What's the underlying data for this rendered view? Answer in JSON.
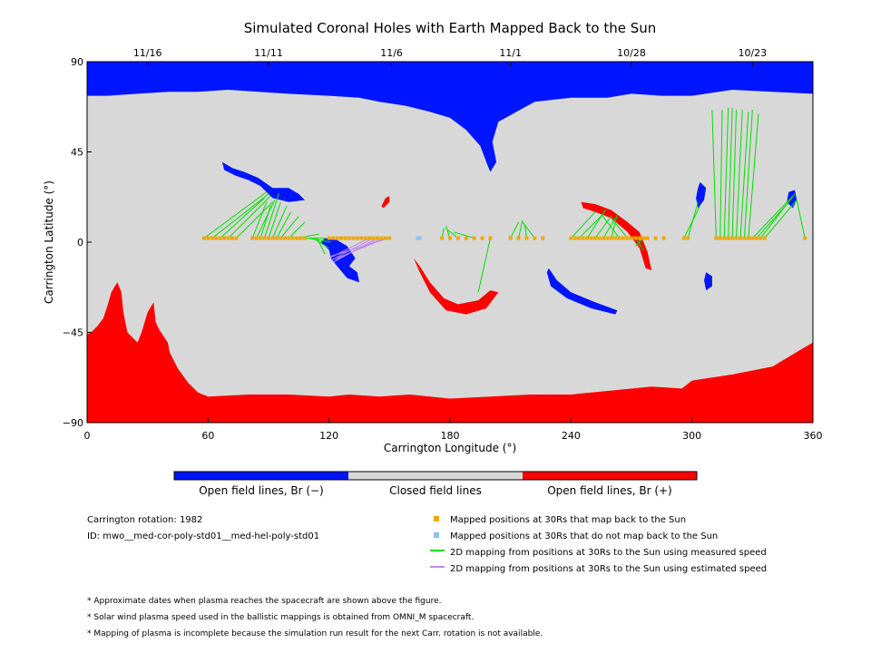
{
  "chart_data": {
    "type": "map",
    "title": "Simulated Coronal Holes with Earth Mapped Back to the Sun",
    "xlabel": "Carrington Longitude (°)",
    "ylabel": "Carrington Latitude (°)",
    "xlim": [
      0,
      360
    ],
    "ylim": [
      -90,
      90
    ],
    "x_ticks": [
      0,
      60,
      120,
      180,
      240,
      300,
      360
    ],
    "y_ticks": [
      90,
      45,
      0,
      -45,
      -90
    ],
    "y_tick_labels": [
      "90",
      "45",
      "0",
      "−45",
      "−90"
    ],
    "top_axis_dates": [
      {
        "label": "11/16",
        "lon": 30
      },
      {
        "label": "11/11",
        "lon": 90
      },
      {
        "label": "11/6",
        "lon": 151
      },
      {
        "label": "11/1",
        "lon": 210
      },
      {
        "label": "10/28",
        "lon": 270
      },
      {
        "label": "10/23",
        "lon": 330
      }
    ],
    "colors": {
      "open_negative": "#0015ff",
      "open_positive": "#ff0000",
      "closed": "#d8d8d8",
      "mapped": "#f0a800",
      "not_mapped": "#88c4ee",
      "measured": "#00e000",
      "estimated": "#c088f0"
    },
    "colorbar_labels": [
      "Open field lines, Br (−)",
      "Closed field lines",
      "Open field lines, Br (+)"
    ],
    "regions": [
      {
        "name": "north-negative-polar-cap",
        "polarity": "negative",
        "outline": [
          [
            0,
            90
          ],
          [
            360,
            90
          ],
          [
            360,
            74
          ],
          [
            340,
            75
          ],
          [
            320,
            76
          ],
          [
            300,
            73
          ],
          [
            285,
            73
          ],
          [
            270,
            74
          ],
          [
            258,
            72
          ],
          [
            240,
            72
          ],
          [
            222,
            70
          ],
          [
            204,
            60
          ],
          [
            201,
            50
          ],
          [
            203,
            40
          ],
          [
            200,
            35
          ],
          [
            198,
            40
          ],
          [
            195,
            48
          ],
          [
            188,
            56
          ],
          [
            180,
            62
          ],
          [
            170,
            65
          ],
          [
            158,
            68
          ],
          [
            145,
            70
          ],
          [
            135,
            72
          ],
          [
            120,
            73
          ],
          [
            100,
            74
          ],
          [
            85,
            75
          ],
          [
            70,
            76
          ],
          [
            55,
            75
          ],
          [
            40,
            75
          ],
          [
            25,
            74
          ],
          [
            10,
            73
          ],
          [
            0,
            73
          ]
        ]
      },
      {
        "name": "south-positive-polar-cap",
        "polarity": "positive",
        "outline": [
          [
            0,
            -90
          ],
          [
            360,
            -90
          ],
          [
            360,
            -50
          ],
          [
            350,
            -56
          ],
          [
            340,
            -62
          ],
          [
            320,
            -66
          ],
          [
            300,
            -69
          ],
          [
            295,
            -73
          ],
          [
            280,
            -72
          ],
          [
            260,
            -74
          ],
          [
            240,
            -76
          ],
          [
            220,
            -76
          ],
          [
            200,
            -77
          ],
          [
            180,
            -78
          ],
          [
            160,
            -76
          ],
          [
            145,
            -77
          ],
          [
            130,
            -76
          ],
          [
            120,
            -77
          ],
          [
            100,
            -76
          ],
          [
            80,
            -76
          ],
          [
            60,
            -77
          ],
          [
            55,
            -75
          ],
          [
            50,
            -70
          ],
          [
            45,
            -63
          ],
          [
            41,
            -55
          ],
          [
            40,
            -50
          ],
          [
            38,
            -47
          ],
          [
            36,
            -44
          ],
          [
            34,
            -40
          ],
          [
            33,
            -30
          ],
          [
            30,
            -35
          ],
          [
            27,
            -45
          ],
          [
            25,
            -50
          ],
          [
            20,
            -45
          ],
          [
            18,
            -35
          ],
          [
            17,
            -25
          ],
          [
            15,
            -20
          ],
          [
            12,
            -25
          ],
          [
            10,
            -32
          ],
          [
            8,
            -38
          ],
          [
            5,
            -42
          ],
          [
            2,
            -45
          ],
          [
            0,
            -46
          ]
        ]
      },
      {
        "name": "hole-neg-70-90",
        "polarity": "negative",
        "outline": [
          [
            67,
            40
          ],
          [
            72,
            37
          ],
          [
            78,
            35
          ],
          [
            85,
            32
          ],
          [
            92,
            27
          ],
          [
            100,
            27
          ],
          [
            105,
            24
          ],
          [
            108,
            21
          ],
          [
            100,
            20
          ],
          [
            92,
            22
          ],
          [
            86,
            28
          ],
          [
            80,
            31
          ],
          [
            74,
            33
          ],
          [
            68,
            36
          ]
        ]
      },
      {
        "name": "hole-neg-122-107",
        "polarity": "negative",
        "outline": [
          [
            116,
            0
          ],
          [
            120,
            -4
          ],
          [
            121,
            -8
          ],
          [
            124,
            -12
          ],
          [
            129,
            -18
          ],
          [
            135,
            -20
          ],
          [
            134,
            -15
          ],
          [
            130,
            -12
          ],
          [
            133,
            -8
          ],
          [
            129,
            -2
          ],
          [
            124,
            1
          ],
          [
            118,
            2
          ]
        ]
      },
      {
        "name": "hole-pos-146-20",
        "polarity": "positive",
        "outline": [
          [
            146,
            18
          ],
          [
            148,
            22
          ],
          [
            150,
            23
          ],
          [
            150,
            20
          ],
          [
            147,
            17
          ]
        ]
      },
      {
        "name": "hole-pos-168-24",
        "polarity": "positive",
        "outline": [
          [
            162,
            -8
          ],
          [
            165,
            -15
          ],
          [
            170,
            -25
          ],
          [
            178,
            -34
          ],
          [
            188,
            -36
          ],
          [
            198,
            -33
          ],
          [
            204,
            -25
          ],
          [
            200,
            -24
          ],
          [
            194,
            -29
          ],
          [
            184,
            -31
          ],
          [
            177,
            -28
          ],
          [
            170,
            -20
          ],
          [
            165,
            -12
          ]
        ]
      },
      {
        "name": "hole-neg-234-28",
        "polarity": "negative",
        "outline": [
          [
            228,
            -15
          ],
          [
            230,
            -22
          ],
          [
            238,
            -28
          ],
          [
            250,
            -33
          ],
          [
            262,
            -36
          ],
          [
            263,
            -34
          ],
          [
            252,
            -30
          ],
          [
            240,
            -25
          ],
          [
            233,
            -19
          ],
          [
            229,
            -13
          ]
        ]
      },
      {
        "name": "hole-pos-250-18",
        "polarity": "positive",
        "outline": [
          [
            245,
            20
          ],
          [
            252,
            19
          ],
          [
            260,
            16
          ],
          [
            268,
            10
          ],
          [
            274,
            5
          ],
          [
            278,
            -5
          ],
          [
            280,
            -14
          ],
          [
            277,
            -13
          ],
          [
            274,
            -3
          ],
          [
            268,
            5
          ],
          [
            260,
            12
          ],
          [
            252,
            15
          ],
          [
            246,
            17
          ]
        ]
      },
      {
        "name": "hole-neg-305-22",
        "polarity": "negative",
        "outline": [
          [
            304,
            30
          ],
          [
            307,
            27
          ],
          [
            306,
            21
          ],
          [
            303,
            17
          ],
          [
            302,
            22
          ],
          [
            303,
            27
          ]
        ]
      },
      {
        "name": "hole-neg-310-20",
        "polarity": "negative",
        "outline": [
          [
            307,
            -15
          ],
          [
            310,
            -17
          ],
          [
            310,
            -22
          ],
          [
            307,
            -24
          ],
          [
            306,
            -19
          ]
        ]
      },
      {
        "name": "hole-neg-350-20",
        "polarity": "negative",
        "outline": [
          [
            348,
            25
          ],
          [
            351,
            26
          ],
          [
            352,
            21
          ],
          [
            350,
            17
          ],
          [
            347,
            20
          ]
        ]
      }
    ],
    "mapped_positions_lon": [
      58,
      60,
      62,
      64,
      66,
      68,
      70,
      72,
      74,
      82,
      84,
      86,
      88,
      90,
      92,
      94,
      96,
      98,
      100,
      102,
      104,
      106,
      108,
      120,
      122,
      124,
      126,
      128,
      130,
      132,
      134,
      136,
      138,
      140,
      142,
      144,
      146,
      148,
      150,
      176,
      180,
      184,
      188,
      192,
      196,
      200,
      210,
      214,
      218,
      222,
      226,
      240,
      242,
      244,
      246,
      248,
      250,
      252,
      254,
      256,
      258,
      260,
      262,
      264,
      266,
      268,
      270,
      272,
      274,
      276,
      278,
      282,
      286,
      296,
      298,
      312,
      314,
      316,
      318,
      320,
      322,
      324,
      326,
      328,
      330,
      332,
      334,
      336,
      356
    ],
    "not_mapped_positions_lon": [
      164,
      165
    ],
    "measured_mappings": [
      [
        58,
        2,
        89,
        25
      ],
      [
        62,
        2,
        90,
        24
      ],
      [
        66,
        2,
        88,
        22
      ],
      [
        70,
        2,
        91,
        23
      ],
      [
        74,
        2,
        92,
        20
      ],
      [
        82,
        2,
        89,
        20
      ],
      [
        84,
        2,
        93,
        21
      ],
      [
        86,
        2,
        91,
        18
      ],
      [
        88,
        2,
        95,
        24
      ],
      [
        90,
        2,
        96,
        20
      ],
      [
        92,
        2,
        99,
        18
      ],
      [
        94,
        2,
        101,
        15
      ],
      [
        96,
        2,
        105,
        13
      ],
      [
        100,
        2,
        108,
        10
      ],
      [
        104,
        2,
        115,
        4
      ],
      [
        108,
        2,
        118,
        2
      ],
      [
        110,
        2,
        121,
        0
      ],
      [
        112,
        2,
        120,
        -3
      ],
      [
        114,
        2,
        118,
        -6
      ],
      [
        176,
        2,
        177,
        7
      ],
      [
        180,
        2,
        178,
        8
      ],
      [
        184,
        2,
        179,
        6
      ],
      [
        192,
        2,
        182,
        5
      ],
      [
        200,
        2,
        194,
        -25
      ],
      [
        210,
        2,
        214,
        10
      ],
      [
        214,
        2,
        216,
        11
      ],
      [
        218,
        2,
        217,
        9
      ],
      [
        222,
        2,
        216,
        10
      ],
      [
        240,
        2,
        252,
        15
      ],
      [
        244,
        2,
        256,
        14
      ],
      [
        248,
        2,
        257,
        16
      ],
      [
        252,
        2,
        260,
        13
      ],
      [
        256,
        2,
        262,
        12
      ],
      [
        260,
        2,
        263,
        14
      ],
      [
        264,
        2,
        255,
        14
      ],
      [
        268,
        2,
        260,
        12
      ],
      [
        272,
        2,
        276,
        -4
      ],
      [
        274,
        2,
        274,
        -2
      ],
      [
        276,
        2,
        272,
        -2
      ],
      [
        278,
        2,
        276,
        2
      ],
      [
        296,
        2,
        304,
        18
      ],
      [
        298,
        2,
        303,
        20
      ],
      [
        312,
        2,
        310,
        66
      ],
      [
        314,
        2,
        315,
        66
      ],
      [
        316,
        2,
        318,
        67
      ],
      [
        318,
        2,
        320,
        67
      ],
      [
        320,
        2,
        322,
        66
      ],
      [
        322,
        2,
        325,
        66
      ],
      [
        324,
        2,
        328,
        65
      ],
      [
        326,
        2,
        330,
        66
      ],
      [
        328,
        2,
        333,
        64
      ],
      [
        330,
        2,
        350,
        23
      ],
      [
        332,
        2,
        348,
        20
      ],
      [
        334,
        2,
        351,
        24
      ],
      [
        336,
        2,
        352,
        21
      ],
      [
        356,
        2,
        352,
        21
      ]
    ],
    "estimated_mappings": [
      [
        140,
        2,
        120,
        -8
      ],
      [
        142,
        2,
        121,
        -9
      ],
      [
        144,
        2,
        122,
        -10
      ],
      [
        146,
        2,
        123,
        -9
      ],
      [
        148,
        2,
        124,
        -8
      ],
      [
        150,
        2,
        121,
        -7
      ]
    ]
  },
  "legend": {
    "items": [
      {
        "label": "Mapped positions at 30Rs that map back to the Sun",
        "marker": "square",
        "color": "#f0a800"
      },
      {
        "label": "Mapped positions at 30Rs that do not map back to the Sun",
        "marker": "square",
        "color": "#88c4ee"
      },
      {
        "label": "2D mapping from positions at 30Rs to the Sun using measured speed",
        "marker": "line",
        "color": "#00e000"
      },
      {
        "label": "2D mapping from positions at 30Rs to the Sun using estimated speed",
        "marker": "line",
        "color": "#c088f0"
      }
    ]
  },
  "info": {
    "rotation": "Carrington rotation: 1982",
    "id": "ID: mwo__med-cor-poly-std01__med-hel-poly-std01"
  },
  "notes": [
    "* Approximate dates when plasma reaches the spacecraft are shown above the figure.",
    "* Solar wind plasma speed used in the ballistic mappings is obtained from OMNI_M spacecraft.",
    "* Mapping of plasma is incomplete because the simulation run result for the next Carr. rotation is not available."
  ]
}
